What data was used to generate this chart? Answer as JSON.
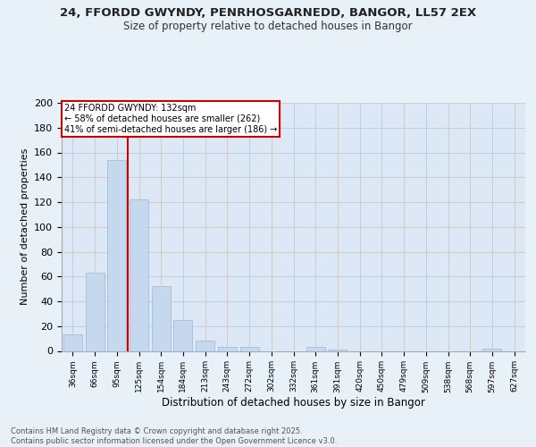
{
  "title1": "24, FFORDD GWYNDY, PENRHOSGARNEDD, BANGOR, LL57 2EX",
  "title2": "Size of property relative to detached houses in Bangor",
  "xlabel": "Distribution of detached houses by size in Bangor",
  "ylabel": "Number of detached properties",
  "categories": [
    "36sqm",
    "66sqm",
    "95sqm",
    "125sqm",
    "154sqm",
    "184sqm",
    "213sqm",
    "243sqm",
    "272sqm",
    "302sqm",
    "332sqm",
    "361sqm",
    "391sqm",
    "420sqm",
    "450sqm",
    "479sqm",
    "509sqm",
    "538sqm",
    "568sqm",
    "597sqm",
    "627sqm"
  ],
  "values": [
    13,
    63,
    154,
    122,
    52,
    25,
    8,
    3,
    3,
    0,
    0,
    3,
    1,
    0,
    0,
    0,
    0,
    0,
    0,
    2,
    0
  ],
  "bar_color": "#c5d8ed",
  "bar_edge_color": "#a0b8d0",
  "highlight_line_color": "#cc0000",
  "annotation_text": "24 FFORDD GWYNDY: 132sqm\n← 58% of detached houses are smaller (262)\n41% of semi-detached houses are larger (186) →",
  "annotation_box_color": "#cc0000",
  "footer": "Contains HM Land Registry data © Crown copyright and database right 2025.\nContains public sector information licensed under the Open Government Licence v3.0.",
  "ylim": [
    0,
    200
  ],
  "yticks": [
    0,
    20,
    40,
    60,
    80,
    100,
    120,
    140,
    160,
    180,
    200
  ],
  "grid_color": "#cccccc",
  "bg_color": "#e8f0f8",
  "plot_bg_color": "#dce8f5"
}
